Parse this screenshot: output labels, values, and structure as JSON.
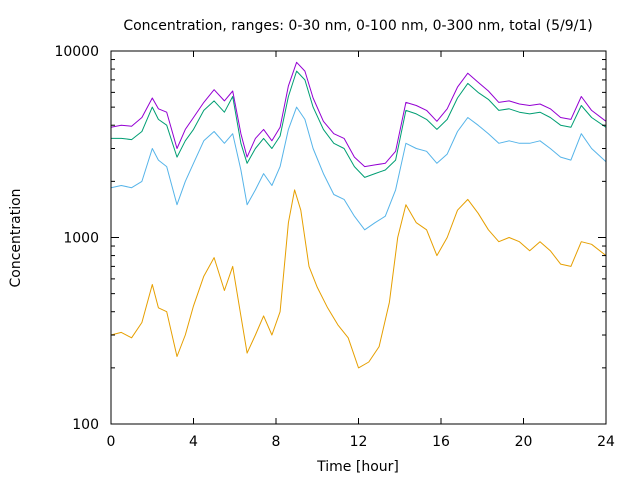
{
  "chart_data": {
    "type": "line",
    "title": "Concentration, ranges: 0-30 nm, 0-100 nm, 0-300 nm, total (5/9/1)",
    "xlabel": "Time [hour]",
    "ylabel": "Concentration",
    "x_range": [
      0,
      24
    ],
    "y_range": [
      100,
      10000
    ],
    "y_scale": "log",
    "grid": false,
    "x_ticks": [
      {
        "value": 0,
        "label": "0"
      },
      {
        "value": 4,
        "label": "4"
      },
      {
        "value": 8,
        "label": "8"
      },
      {
        "value": 12,
        "label": "12"
      },
      {
        "value": 16,
        "label": "16"
      },
      {
        "value": 20,
        "label": "20"
      },
      {
        "value": 24,
        "label": "24"
      }
    ],
    "y_ticks": [
      {
        "value": 100,
        "label": "100"
      },
      {
        "value": 1000,
        "label": "1000"
      },
      {
        "value": 10000,
        "label": "10000"
      }
    ],
    "series": [
      {
        "color": "#e69f00",
        "points": [
          [
            0,
            300
          ],
          [
            0.5,
            310
          ],
          [
            1,
            290
          ],
          [
            1.5,
            350
          ],
          [
            2,
            560
          ],
          [
            2.3,
            420
          ],
          [
            2.7,
            400
          ],
          [
            3.2,
            230
          ],
          [
            3.6,
            300
          ],
          [
            4,
            430
          ],
          [
            4.5,
            620
          ],
          [
            5,
            780
          ],
          [
            5.5,
            520
          ],
          [
            5.9,
            700
          ],
          [
            6.3,
            380
          ],
          [
            6.6,
            240
          ],
          [
            7,
            300
          ],
          [
            7.4,
            380
          ],
          [
            7.8,
            300
          ],
          [
            8.2,
            400
          ],
          [
            8.6,
            1200
          ],
          [
            8.9,
            1800
          ],
          [
            9.2,
            1400
          ],
          [
            9.6,
            700
          ],
          [
            10,
            540
          ],
          [
            10.5,
            420
          ],
          [
            11,
            340
          ],
          [
            11.5,
            290
          ],
          [
            12,
            200
          ],
          [
            12.5,
            215
          ],
          [
            13,
            260
          ],
          [
            13.5,
            450
          ],
          [
            13.9,
            1000
          ],
          [
            14.3,
            1500
          ],
          [
            14.8,
            1200
          ],
          [
            15.3,
            1100
          ],
          [
            15.8,
            800
          ],
          [
            16.3,
            1000
          ],
          [
            16.8,
            1400
          ],
          [
            17.3,
            1600
          ],
          [
            17.8,
            1350
          ],
          [
            18.3,
            1100
          ],
          [
            18.8,
            950
          ],
          [
            19.3,
            1000
          ],
          [
            19.8,
            950
          ],
          [
            20.3,
            850
          ],
          [
            20.8,
            950
          ],
          [
            21.3,
            850
          ],
          [
            21.8,
            720
          ],
          [
            22.3,
            700
          ],
          [
            22.8,
            950
          ],
          [
            23.3,
            920
          ],
          [
            24,
            800
          ]
        ]
      },
      {
        "color": "#56b4e9",
        "points": [
          [
            0,
            1850
          ],
          [
            0.5,
            1900
          ],
          [
            1,
            1850
          ],
          [
            1.5,
            2000
          ],
          [
            2,
            3000
          ],
          [
            2.3,
            2600
          ],
          [
            2.7,
            2400
          ],
          [
            3.2,
            1500
          ],
          [
            3.6,
            2000
          ],
          [
            4,
            2500
          ],
          [
            4.5,
            3300
          ],
          [
            5,
            3700
          ],
          [
            5.5,
            3200
          ],
          [
            5.9,
            3600
          ],
          [
            6.3,
            2300
          ],
          [
            6.6,
            1500
          ],
          [
            7,
            1800
          ],
          [
            7.4,
            2200
          ],
          [
            7.8,
            1900
          ],
          [
            8.2,
            2400
          ],
          [
            8.6,
            3800
          ],
          [
            9,
            5000
          ],
          [
            9.4,
            4300
          ],
          [
            9.8,
            3000
          ],
          [
            10.3,
            2200
          ],
          [
            10.8,
            1700
          ],
          [
            11.3,
            1600
          ],
          [
            11.8,
            1300
          ],
          [
            12.3,
            1100
          ],
          [
            12.8,
            1200
          ],
          [
            13.3,
            1300
          ],
          [
            13.8,
            1800
          ],
          [
            14.3,
            3200
          ],
          [
            14.8,
            3000
          ],
          [
            15.3,
            2900
          ],
          [
            15.8,
            2500
          ],
          [
            16.3,
            2800
          ],
          [
            16.8,
            3700
          ],
          [
            17.3,
            4400
          ],
          [
            17.8,
            4000
          ],
          [
            18.3,
            3600
          ],
          [
            18.8,
            3200
          ],
          [
            19.3,
            3300
          ],
          [
            19.8,
            3200
          ],
          [
            20.3,
            3200
          ],
          [
            20.8,
            3300
          ],
          [
            21.3,
            3000
          ],
          [
            21.8,
            2700
          ],
          [
            22.3,
            2600
          ],
          [
            22.8,
            3600
          ],
          [
            23.3,
            3000
          ],
          [
            24,
            2550
          ]
        ]
      },
      {
        "color": "#009e73",
        "points": [
          [
            0,
            3400
          ],
          [
            0.5,
            3400
          ],
          [
            1,
            3350
          ],
          [
            1.5,
            3700
          ],
          [
            2,
            5000
          ],
          [
            2.3,
            4300
          ],
          [
            2.7,
            4000
          ],
          [
            3.2,
            2700
          ],
          [
            3.6,
            3300
          ],
          [
            4,
            3800
          ],
          [
            4.5,
            4800
          ],
          [
            5,
            5400
          ],
          [
            5.5,
            4700
          ],
          [
            5.9,
            5700
          ],
          [
            6.3,
            3200
          ],
          [
            6.6,
            2500
          ],
          [
            7,
            3000
          ],
          [
            7.4,
            3400
          ],
          [
            7.8,
            3000
          ],
          [
            8.2,
            3500
          ],
          [
            8.6,
            5700
          ],
          [
            9,
            7800
          ],
          [
            9.4,
            7000
          ],
          [
            9.8,
            5000
          ],
          [
            10.3,
            3800
          ],
          [
            10.8,
            3200
          ],
          [
            11.3,
            3000
          ],
          [
            11.8,
            2400
          ],
          [
            12.3,
            2100
          ],
          [
            12.8,
            2200
          ],
          [
            13.3,
            2300
          ],
          [
            13.8,
            2600
          ],
          [
            14.3,
            4800
          ],
          [
            14.8,
            4600
          ],
          [
            15.3,
            4300
          ],
          [
            15.8,
            3800
          ],
          [
            16.3,
            4300
          ],
          [
            16.8,
            5600
          ],
          [
            17.3,
            6700
          ],
          [
            17.8,
            6000
          ],
          [
            18.3,
            5500
          ],
          [
            18.8,
            4800
          ],
          [
            19.3,
            4900
          ],
          [
            19.8,
            4700
          ],
          [
            20.3,
            4600
          ],
          [
            20.8,
            4700
          ],
          [
            21.3,
            4400
          ],
          [
            21.8,
            4000
          ],
          [
            22.3,
            3900
          ],
          [
            22.8,
            5100
          ],
          [
            23.3,
            4400
          ],
          [
            24,
            3900
          ]
        ]
      },
      {
        "color": "#9400d3",
        "points": [
          [
            0,
            3900
          ],
          [
            0.5,
            4000
          ],
          [
            1,
            3950
          ],
          [
            1.5,
            4400
          ],
          [
            2,
            5600
          ],
          [
            2.3,
            4900
          ],
          [
            2.7,
            4700
          ],
          [
            3.2,
            3000
          ],
          [
            3.6,
            3800
          ],
          [
            4,
            4400
          ],
          [
            4.5,
            5300
          ],
          [
            5,
            6200
          ],
          [
            5.5,
            5400
          ],
          [
            5.9,
            6100
          ],
          [
            6.3,
            3600
          ],
          [
            6.6,
            2700
          ],
          [
            7,
            3400
          ],
          [
            7.4,
            3800
          ],
          [
            7.8,
            3300
          ],
          [
            8.2,
            3900
          ],
          [
            8.6,
            6500
          ],
          [
            9,
            8700
          ],
          [
            9.4,
            7800
          ],
          [
            9.8,
            5600
          ],
          [
            10.3,
            4200
          ],
          [
            10.8,
            3600
          ],
          [
            11.3,
            3400
          ],
          [
            11.8,
            2700
          ],
          [
            12.3,
            2400
          ],
          [
            12.8,
            2450
          ],
          [
            13.3,
            2500
          ],
          [
            13.8,
            2900
          ],
          [
            14.3,
            5300
          ],
          [
            14.8,
            5100
          ],
          [
            15.3,
            4800
          ],
          [
            15.8,
            4200
          ],
          [
            16.3,
            4900
          ],
          [
            16.8,
            6400
          ],
          [
            17.3,
            7600
          ],
          [
            17.8,
            6800
          ],
          [
            18.3,
            6100
          ],
          [
            18.8,
            5300
          ],
          [
            19.3,
            5400
          ],
          [
            19.8,
            5200
          ],
          [
            20.3,
            5100
          ],
          [
            20.8,
            5200
          ],
          [
            21.3,
            4900
          ],
          [
            21.8,
            4400
          ],
          [
            22.3,
            4300
          ],
          [
            22.8,
            5700
          ],
          [
            23.3,
            4800
          ],
          [
            24,
            4200
          ]
        ]
      }
    ]
  }
}
